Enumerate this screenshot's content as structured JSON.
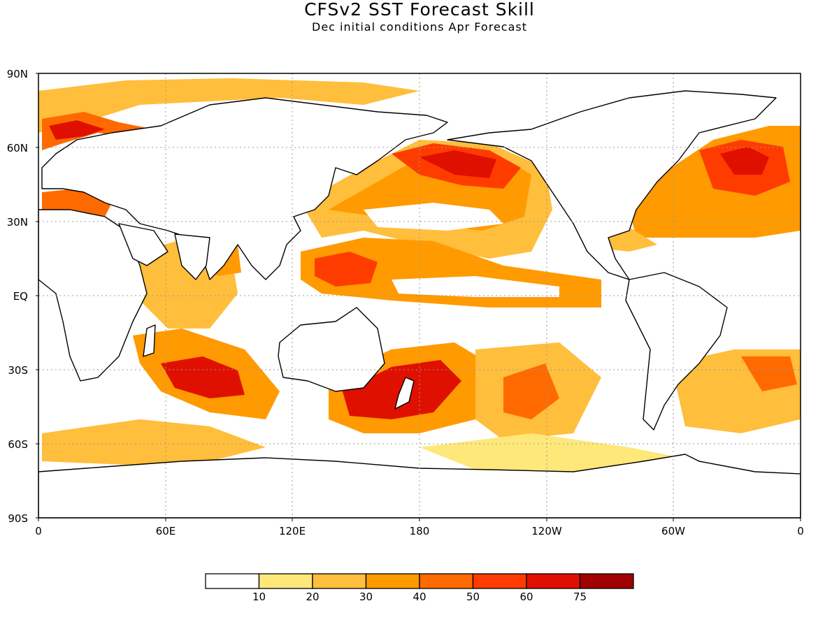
{
  "header": {
    "title": "CFSv2  SST Forecast Skill",
    "subtitle": "Dec initial conditions  Apr Forecast"
  },
  "axes": {
    "y_ticks": [
      "90N",
      "60N",
      "30N",
      "EQ",
      "30S",
      "60S",
      "90S"
    ],
    "x_ticks": [
      "0",
      "60E",
      "120E",
      "180",
      "120W",
      "60W",
      "0"
    ]
  },
  "colorbar": {
    "colors": [
      "#ffffff",
      "#ffe87a",
      "#ffbe3b",
      "#ff9a00",
      "#ff6a00",
      "#ff3c00",
      "#e01000",
      "#a00000"
    ],
    "labels": [
      "10",
      "20",
      "30",
      "40",
      "50",
      "60",
      "75"
    ]
  },
  "colors": {
    "land_outline": "#000000",
    "grid": "#9a9a9a"
  }
}
